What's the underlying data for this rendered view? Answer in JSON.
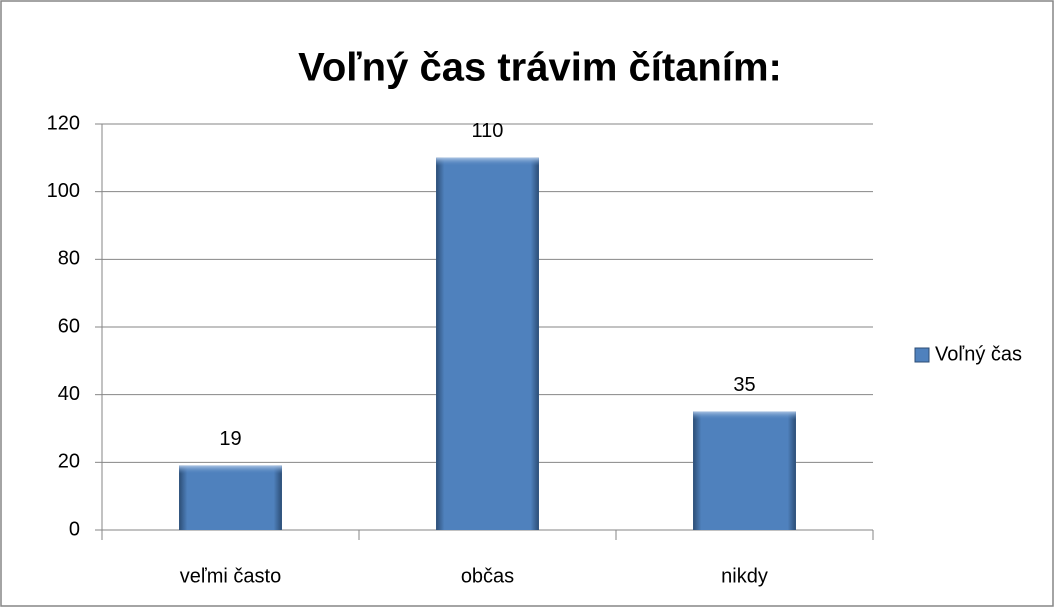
{
  "chart_data": {
    "type": "bar",
    "title": "Voľný čas trávim čítaním:",
    "categories": [
      "veľmi často",
      "občas",
      "nikdy"
    ],
    "series": [
      {
        "name": "Voľný čas",
        "color": "#4f81bd",
        "values": [
          19,
          110,
          35
        ]
      }
    ],
    "ylim": [
      0,
      120
    ],
    "yticks": [
      0,
      20,
      40,
      60,
      80,
      100,
      120
    ],
    "grid": true,
    "legend": "right",
    "data_labels": true
  }
}
